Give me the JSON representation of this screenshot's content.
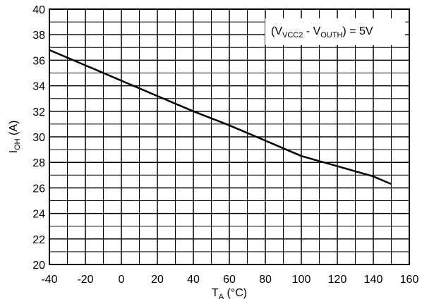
{
  "chart_data": {
    "type": "line",
    "x": [
      -40,
      -20,
      0,
      20,
      40,
      60,
      80,
      100,
      120,
      140,
      150
    ],
    "series": [
      {
        "values": [
          36.8,
          35.6,
          34.4,
          33.2,
          32.0,
          30.9,
          29.7,
          28.5,
          27.7,
          26.9,
          26.3
        ]
      }
    ],
    "xlim": [
      -40,
      160
    ],
    "ylim": [
      20,
      40
    ],
    "xticks": [
      -40,
      -20,
      0,
      20,
      40,
      60,
      80,
      100,
      120,
      140,
      160
    ],
    "yticks": [
      20,
      22,
      24,
      26,
      28,
      30,
      32,
      34,
      36,
      38,
      40
    ],
    "xtick_labels": [
      "-40",
      "-20",
      "0",
      "20",
      "40",
      "60",
      "80",
      "100",
      "120",
      "140",
      "160"
    ],
    "ytick_labels": [
      "20",
      "22",
      "24",
      "26",
      "28",
      "30",
      "32",
      "34",
      "36",
      "38",
      "40"
    ],
    "xlabel": {
      "main": "T",
      "sub": "A",
      "rest": " (°C)"
    },
    "ylabel": {
      "main": "I",
      "sub": "OH",
      "rest": " (A)"
    },
    "annotation": {
      "open": "(V",
      "sub1": "VCC2",
      "mid": " - V",
      "sub2": "OUTH",
      "close": ") = 5V"
    },
    "grid": true,
    "minor_grid": true,
    "line_color": "#000000",
    "grid_color": "#000000"
  }
}
